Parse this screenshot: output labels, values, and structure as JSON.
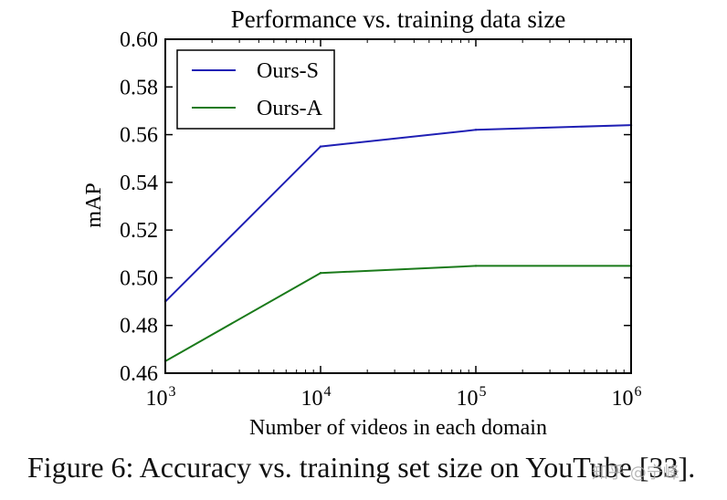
{
  "chart_data": {
    "type": "line",
    "title": "Performance vs. training data size",
    "xlabel": "Number of videos in each domain",
    "ylabel": "mAP",
    "xscale": "log",
    "xlim": [
      1000,
      1000000
    ],
    "ylim": [
      0.46,
      0.6
    ],
    "x": [
      1000,
      10000,
      100000,
      1000000
    ],
    "xticks": [
      {
        "base": "10",
        "exp": "3"
      },
      {
        "base": "10",
        "exp": "4"
      },
      {
        "base": "10",
        "exp": "5"
      },
      {
        "base": "10",
        "exp": "6"
      }
    ],
    "yticks": [
      0.46,
      0.48,
      0.5,
      0.52,
      0.54,
      0.56,
      0.58,
      0.6
    ],
    "ytick_labels": [
      "0.46",
      "0.48",
      "0.50",
      "0.52",
      "0.54",
      "0.56",
      "0.58",
      "0.60"
    ],
    "legend_position": "top-left",
    "series": [
      {
        "name": "Ours-S",
        "color": "#1f1fb4",
        "values": [
          0.49,
          0.555,
          0.562,
          0.564
        ]
      },
      {
        "name": "Ours-A",
        "color": "#1a7a1a",
        "values": [
          0.465,
          0.502,
          0.505,
          0.505
        ]
      }
    ]
  },
  "caption": "Figure 6: Accuracy vs. training set size on YouTube [33].",
  "watermark": "知乎 @宁峰"
}
